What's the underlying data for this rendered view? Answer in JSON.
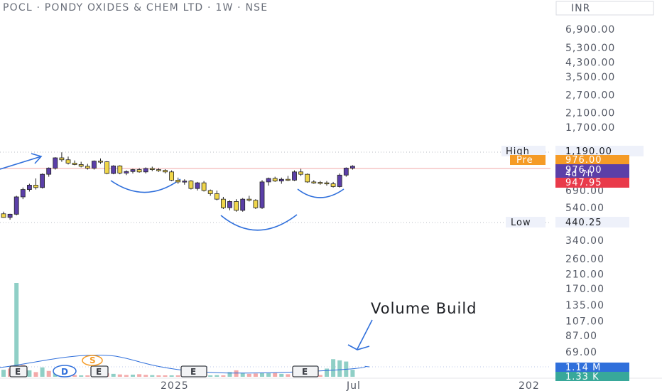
{
  "header": {
    "title": "POCL · PONDY OXIDES & CHEM LTD · 1W · NSE",
    "currency": "INR"
  },
  "chart_data": {
    "type": "candlestick",
    "title": "POCL · PONDY OXIDES & CHEM LTD · 1W · NSE",
    "y_scale": "log",
    "currency": "INR",
    "y_ticks": [
      6900,
      5300,
      4300,
      3500,
      2700,
      2100,
      1700,
      690,
      540,
      340,
      260,
      210,
      170,
      135,
      107,
      87,
      69
    ],
    "y_ticks_labels": [
      "6,900.00",
      "5,300.00",
      "4,300.00",
      "3,500.00",
      "2,700.00",
      "2,100.00",
      "1,700.00",
      "690.00",
      "540.00",
      "340.00",
      "260.00",
      "210.00",
      "170.00",
      "135.00",
      "107.00",
      "87.00",
      "69.00"
    ],
    "x_ticks": [
      "2025",
      "Jul"
    ],
    "x_tick_partial": "202",
    "price_labels": {
      "high_label": "High",
      "high_value": "1,190.00",
      "pre_label": "Pre",
      "pre_value": "976.00",
      "last_value": "976.00",
      "countdown": "4d 7h",
      "prev_close": "947.95",
      "low_label": "Low",
      "low_value": "440.25"
    },
    "volume_labels": {
      "volume": "1.14 M",
      "volume_ma": "1.33 K"
    },
    "annotation": "Volume Build",
    "event_markers": [
      "E",
      "D",
      "E",
      "S",
      "E",
      "E"
    ],
    "colors": {
      "up": "#5b3fa8",
      "down": "#f0d64a",
      "vol_up": "#8fcfc6",
      "vol_down": "#f3a9a9",
      "accent_blue": "#2f6fdb",
      "pre": "#f59b26",
      "prev_close": "#e93a4a"
    },
    "candles": [
      [
        495,
        510,
        468,
        470
      ],
      [
        470,
        495,
        455,
        492
      ],
      [
        492,
        640,
        485,
        630
      ],
      [
        630,
        720,
        610,
        700
      ],
      [
        700,
        760,
        680,
        745
      ],
      [
        745,
        820,
        700,
        720
      ],
      [
        720,
        880,
        710,
        870
      ],
      [
        870,
        960,
        840,
        950
      ],
      [
        950,
        1110,
        930,
        1100
      ],
      [
        1100,
        1190,
        1040,
        1070
      ],
      [
        1070,
        1120,
        1000,
        1020
      ],
      [
        1020,
        1060,
        990,
        1000
      ],
      [
        1000,
        1040,
        960,
        975
      ],
      [
        975,
        1010,
        930,
        950
      ],
      [
        950,
        1060,
        930,
        1050
      ],
      [
        1050,
        1090,
        1010,
        1040
      ],
      [
        1040,
        1050,
        870,
        880
      ],
      [
        880,
        990,
        870,
        980
      ],
      [
        980,
        990,
        870,
        885
      ],
      [
        885,
        920,
        860,
        905
      ],
      [
        905,
        940,
        880,
        930
      ],
      [
        930,
        950,
        890,
        900
      ],
      [
        900,
        960,
        880,
        945
      ],
      [
        945,
        970,
        910,
        930
      ],
      [
        930,
        950,
        900,
        920
      ],
      [
        920,
        935,
        880,
        900
      ],
      [
        900,
        920,
        790,
        800
      ],
      [
        800,
        830,
        760,
        780
      ],
      [
        780,
        810,
        750,
        790
      ],
      [
        790,
        800,
        700,
        710
      ],
      [
        710,
        780,
        690,
        770
      ],
      [
        770,
        790,
        680,
        690
      ],
      [
        690,
        700,
        640,
        660
      ],
      [
        660,
        690,
        600,
        610
      ],
      [
        610,
        630,
        530,
        540
      ],
      [
        540,
        600,
        520,
        590
      ],
      [
        590,
        610,
        510,
        520
      ],
      [
        520,
        620,
        510,
        610
      ],
      [
        610,
        640,
        590,
        600
      ],
      [
        600,
        610,
        530,
        540
      ],
      [
        540,
        800,
        530,
        780
      ],
      [
        780,
        830,
        740,
        820
      ],
      [
        820,
        840,
        780,
        790
      ],
      [
        790,
        830,
        760,
        810
      ],
      [
        810,
        850,
        790,
        800
      ],
      [
        800,
        920,
        790,
        900
      ],
      [
        900,
        940,
        850,
        870
      ],
      [
        870,
        880,
        770,
        780
      ],
      [
        780,
        800,
        760,
        775
      ],
      [
        775,
        790,
        750,
        770
      ],
      [
        770,
        790,
        740,
        760
      ],
      [
        760,
        780,
        720,
        730
      ],
      [
        730,
        880,
        720,
        860
      ],
      [
        860,
        960,
        840,
        950
      ],
      [
        950,
        990,
        930,
        976
      ]
    ],
    "volume": [
      [
        60,
        "u"
      ],
      [
        70,
        "d"
      ],
      [
        800,
        "u"
      ],
      [
        100,
        "d"
      ],
      [
        55,
        "u"
      ],
      [
        40,
        "d"
      ],
      [
        80,
        "u"
      ],
      [
        50,
        "d"
      ],
      [
        30,
        "u"
      ],
      [
        25,
        "d"
      ],
      [
        20,
        "u"
      ],
      [
        15,
        "d"
      ],
      [
        10,
        "u"
      ],
      [
        12,
        "d"
      ],
      [
        18,
        "d"
      ],
      [
        22,
        "u"
      ],
      [
        30,
        "d"
      ],
      [
        25,
        "u"
      ],
      [
        20,
        "d"
      ],
      [
        15,
        "d"
      ],
      [
        18,
        "u"
      ],
      [
        22,
        "d"
      ],
      [
        16,
        "d"
      ],
      [
        14,
        "u"
      ],
      [
        12,
        "d"
      ],
      [
        10,
        "d"
      ],
      [
        8,
        "u"
      ],
      [
        9,
        "d"
      ],
      [
        10,
        "d"
      ],
      [
        12,
        "u"
      ],
      [
        9,
        "d"
      ],
      [
        8,
        "d"
      ],
      [
        10,
        "u"
      ],
      [
        14,
        "u"
      ],
      [
        12,
        "d"
      ],
      [
        40,
        "u"
      ],
      [
        55,
        "d"
      ],
      [
        30,
        "u"
      ],
      [
        25,
        "d"
      ],
      [
        28,
        "d"
      ],
      [
        35,
        "u"
      ],
      [
        30,
        "u"
      ],
      [
        32,
        "d"
      ],
      [
        25,
        "u"
      ],
      [
        22,
        "d"
      ],
      [
        60,
        "d"
      ],
      [
        25,
        "u"
      ],
      [
        20,
        "u"
      ],
      [
        18,
        "u"
      ],
      [
        15,
        "d"
      ],
      [
        70,
        "u"
      ],
      [
        150,
        "u"
      ],
      [
        140,
        "u"
      ],
      [
        130,
        "u"
      ],
      [
        60,
        "u"
      ]
    ]
  }
}
